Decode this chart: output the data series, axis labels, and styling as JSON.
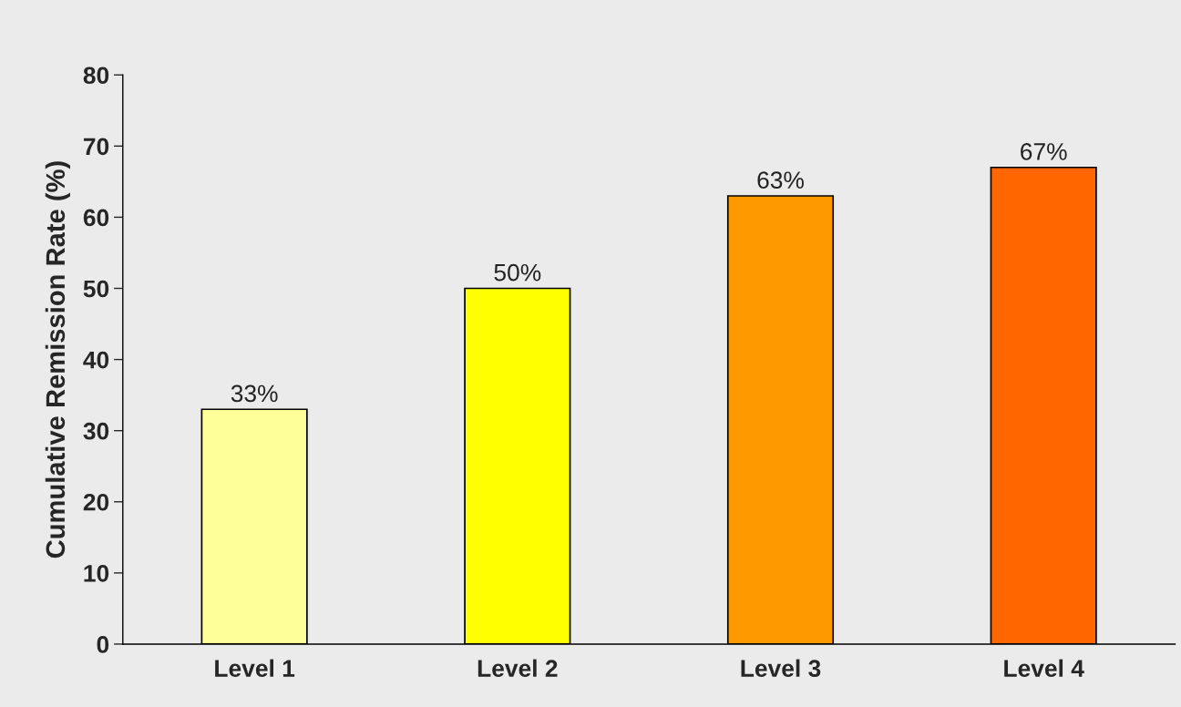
{
  "chart_data": {
    "type": "bar",
    "ylabel": "Cumulative Remission Rate (%)",
    "categories": [
      "Level 1",
      "Level 2",
      "Level 3",
      "Level 4"
    ],
    "values": [
      33,
      50,
      63,
      67
    ],
    "colors": [
      "#ffff99",
      "#ffff00",
      "#ff9900",
      "#ff6600"
    ],
    "value_labels": [
      "33%",
      "50%",
      "63%",
      "67%"
    ],
    "ylim": [
      0,
      80
    ],
    "yticks": [
      0,
      10,
      20,
      30,
      40,
      50,
      60,
      70,
      80
    ],
    "grid": false
  }
}
